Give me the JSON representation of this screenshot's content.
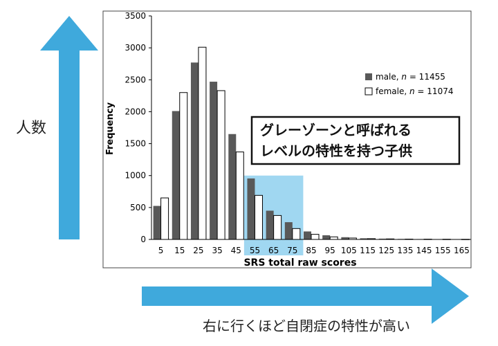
{
  "annotations": {
    "y_side_label": "人数",
    "x_bottom_caption": "右に行くほど自閉症の特性が高い",
    "callout_line1": "グレーゾーンと呼ばれる",
    "callout_line2": "レベルの特性を持つ子供",
    "highlight_range": [
      55,
      75
    ]
  },
  "colors": {
    "arrow": "#3fa9dc",
    "male_bar": "#595959",
    "female_bar": "#ffffff",
    "highlight": "#8fd0ee"
  },
  "chart_data": {
    "type": "bar",
    "xlabel": "SRS total raw scores",
    "ylabel": "Frequency",
    "ylim": [
      0,
      3500
    ],
    "yticks": [
      0,
      500,
      1000,
      1500,
      2000,
      2500,
      3000,
      3500
    ],
    "categories": [
      "5",
      "15",
      "25",
      "35",
      "45",
      "55",
      "65",
      "75",
      "85",
      "95",
      "105",
      "115",
      "125",
      "135",
      "145",
      "155",
      "165"
    ],
    "series": [
      {
        "name": "male, n = 11455",
        "legend_prefix": "male, ",
        "legend_n": "n",
        "legend_suffix": " = 11455",
        "values": [
          525,
          2010,
          2770,
          2470,
          1650,
          955,
          450,
          270,
          125,
          65,
          35,
          18,
          12,
          8,
          6,
          4,
          3
        ]
      },
      {
        "name": "female, n = 11074",
        "legend_prefix": "female, ",
        "legend_n": "n",
        "legend_suffix": " = 11074",
        "values": [
          650,
          2300,
          3010,
          2330,
          1370,
          690,
          375,
          170,
          80,
          40,
          22,
          12,
          8,
          5,
          4,
          3,
          2
        ]
      }
    ],
    "legend_position": "top-right",
    "grid": false
  }
}
